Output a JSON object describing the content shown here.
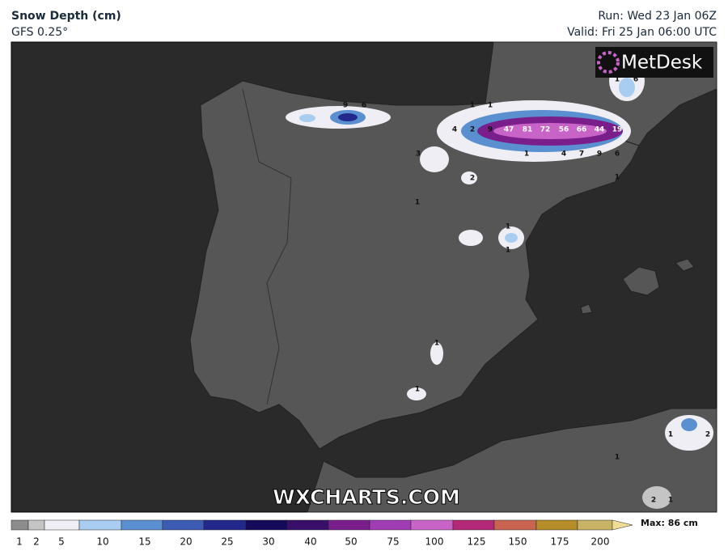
{
  "header": {
    "title": "Snow Depth (cm)",
    "model": "GFS 0.25°",
    "run": "Run: Wed 23 Jan 06Z",
    "valid": "Valid: Fri 25 Jan 06:00 UTC"
  },
  "logo": "MetDesk",
  "watermark": "WXCHARTS.COM",
  "map_labels": [
    9,
    6,
    1,
    1,
    4,
    2,
    9,
    47,
    81,
    72,
    56,
    66,
    44,
    19,
    1,
    4,
    7,
    9,
    6,
    1,
    3,
    2,
    1,
    1,
    1,
    1,
    1,
    1,
    6,
    1,
    2,
    1,
    2,
    1
  ],
  "colorbar": {
    "ticks": [
      1,
      2,
      5,
      10,
      15,
      20,
      25,
      30,
      40,
      50,
      75,
      100,
      125,
      150,
      175,
      200
    ],
    "colors": [
      "#8c8c8c",
      "#c4c4c4",
      "#eeeef4",
      "#a9cdf0",
      "#5a8fd0",
      "#3c5cb4",
      "#22288c",
      "#140a5a",
      "#38106a",
      "#7a1e8c",
      "#a03cb4",
      "#c864c8",
      "#b42878",
      "#c86450",
      "#b48c28",
      "#c8b464",
      "#f0dc96"
    ],
    "max": "Max: 86 cm"
  }
}
